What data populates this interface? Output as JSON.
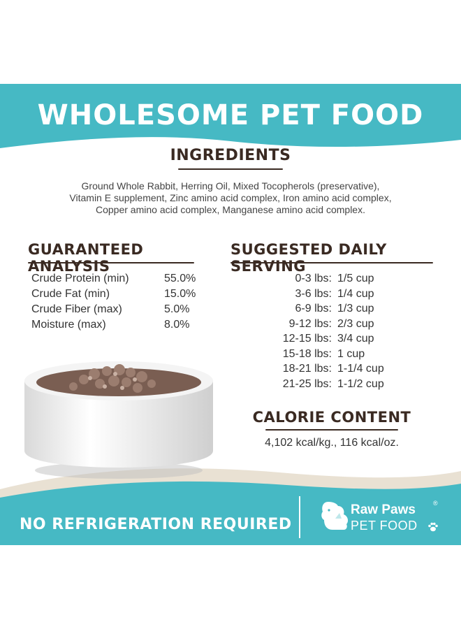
{
  "banner": {
    "title": "WHOLESOME PET FOOD"
  },
  "ingredients": {
    "heading": "INGREDIENTS",
    "lines": [
      "Ground Whole Rabbit, Herring Oil, Mixed Tocopherols (preservative),",
      "Vitamin E supplement, Zinc amino acid complex, Iron amino acid complex,",
      "Copper amino acid complex, Manganese amino acid complex."
    ]
  },
  "analysis": {
    "heading": "GUARANTEED ANALYSIS",
    "rows": [
      {
        "name": "Crude Protein (min)",
        "value": "55.0%"
      },
      {
        "name": "Crude Fat (min)",
        "value": "15.0%"
      },
      {
        "name": "Crude Fiber (max)",
        "value": "5.0%"
      },
      {
        "name": "Moisture (max)",
        "value": "8.0%"
      }
    ]
  },
  "serving": {
    "heading": "SUGGESTED DAILY SERVING",
    "rows": [
      {
        "weight": "0-3 lbs:",
        "amount": "1/5 cup"
      },
      {
        "weight": "3-6 lbs:",
        "amount": "1/4 cup"
      },
      {
        "weight": "6-9 lbs:",
        "amount": "1/3 cup"
      },
      {
        "weight": "9-12 lbs:",
        "amount": "2/3 cup"
      },
      {
        "weight": "12-15 lbs:",
        "amount": "3/4 cup"
      },
      {
        "weight": "15-18 lbs:",
        "amount": "1 cup"
      },
      {
        "weight": "18-21 lbs:",
        "amount": "1-1/4 cup"
      },
      {
        "weight": "21-25 lbs:",
        "amount": "1-1/2 cup"
      }
    ]
  },
  "calorie": {
    "heading": "CALORIE CONTENT",
    "text": "4,102 kcal/kg., 116 kcal/oz."
  },
  "footer": {
    "text": "NO REFRIGERATION REQUIRED",
    "brand_name": "Raw Paws",
    "brand_sub": "PET FOOD",
    "registered": "®"
  },
  "colors": {
    "teal": "#46b9c4",
    "heading_brown": "#3a2a22",
    "cream": "#e9e1d3"
  },
  "icons": [
    "food-bowl-image",
    "dog-cat-logo-icon",
    "paw-icon"
  ]
}
